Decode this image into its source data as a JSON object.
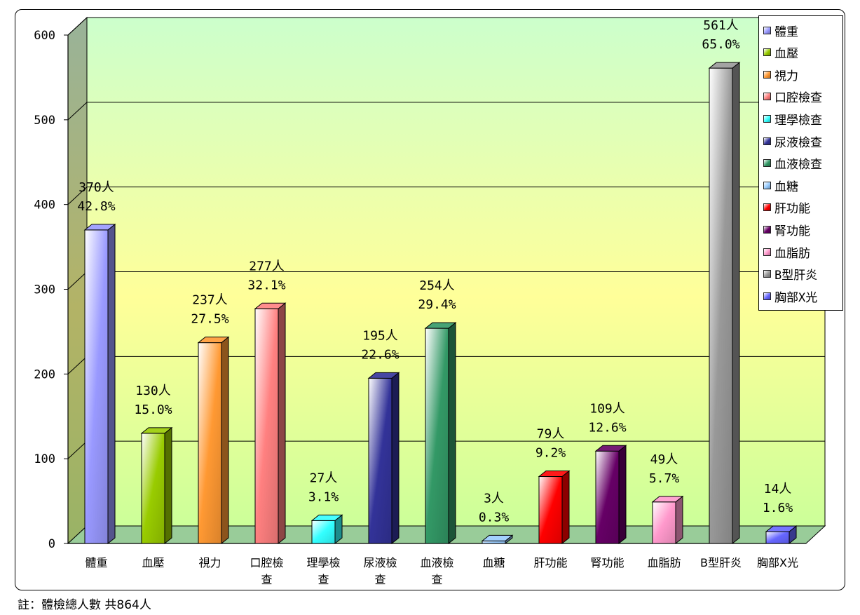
{
  "footnote": "註：體檢總人數 共864人",
  "chart_data": {
    "type": "bar",
    "title": "",
    "xlabel": "",
    "ylabel": "",
    "ylim": [
      0,
      600
    ],
    "yticks": [
      0,
      100,
      200,
      300,
      400,
      500,
      600
    ],
    "grid": true,
    "legend": "top-right",
    "categories": [
      [
        "體重"
      ],
      [
        "血壓"
      ],
      [
        "視力"
      ],
      [
        "口腔檢",
        "查"
      ],
      [
        "理學檢",
        "查"
      ],
      [
        "尿液檢",
        "查"
      ],
      [
        "血液檢",
        "查"
      ],
      [
        "血糖"
      ],
      [
        "肝功能"
      ],
      [
        "腎功能"
      ],
      [
        "血脂肪"
      ],
      [
        "B型肝炎"
      ],
      [
        "胸部X光"
      ]
    ],
    "legend_labels": [
      "體重",
      "血壓",
      "視力",
      "口腔檢查",
      "理學檢查",
      "尿液檢查",
      "血液檢查",
      "血糖",
      "肝功能",
      "腎功能",
      "血脂肪",
      "B型肝炎",
      "胸部X光"
    ],
    "values": [
      370,
      130,
      237,
      277,
      27,
      195,
      254,
      3,
      79,
      109,
      49,
      561,
      14
    ],
    "data_labels": [
      [
        "370人",
        "42.8%"
      ],
      [
        "130人",
        "15.0%"
      ],
      [
        "237人",
        "27.5%"
      ],
      [
        "277人",
        "32.1%"
      ],
      [
        "27人",
        "3.1%"
      ],
      [
        "195人",
        "22.6%"
      ],
      [
        "254人",
        "29.4%"
      ],
      [
        "3人",
        "0.3%"
      ],
      [
        "79人",
        "9.2%"
      ],
      [
        "109人",
        "12.6%"
      ],
      [
        "49人",
        "5.7%"
      ],
      [
        "561人",
        "65.0%"
      ],
      [
        "14人",
        "1.6%"
      ]
    ],
    "colors": [
      "#9999ff",
      "#99cc00",
      "#ff9933",
      "#ff8080",
      "#33ffff",
      "#333399",
      "#339966",
      "#99ccff",
      "#ff0000",
      "#660066",
      "#ff99cc",
      "#999999",
      "#6666ff"
    ]
  }
}
